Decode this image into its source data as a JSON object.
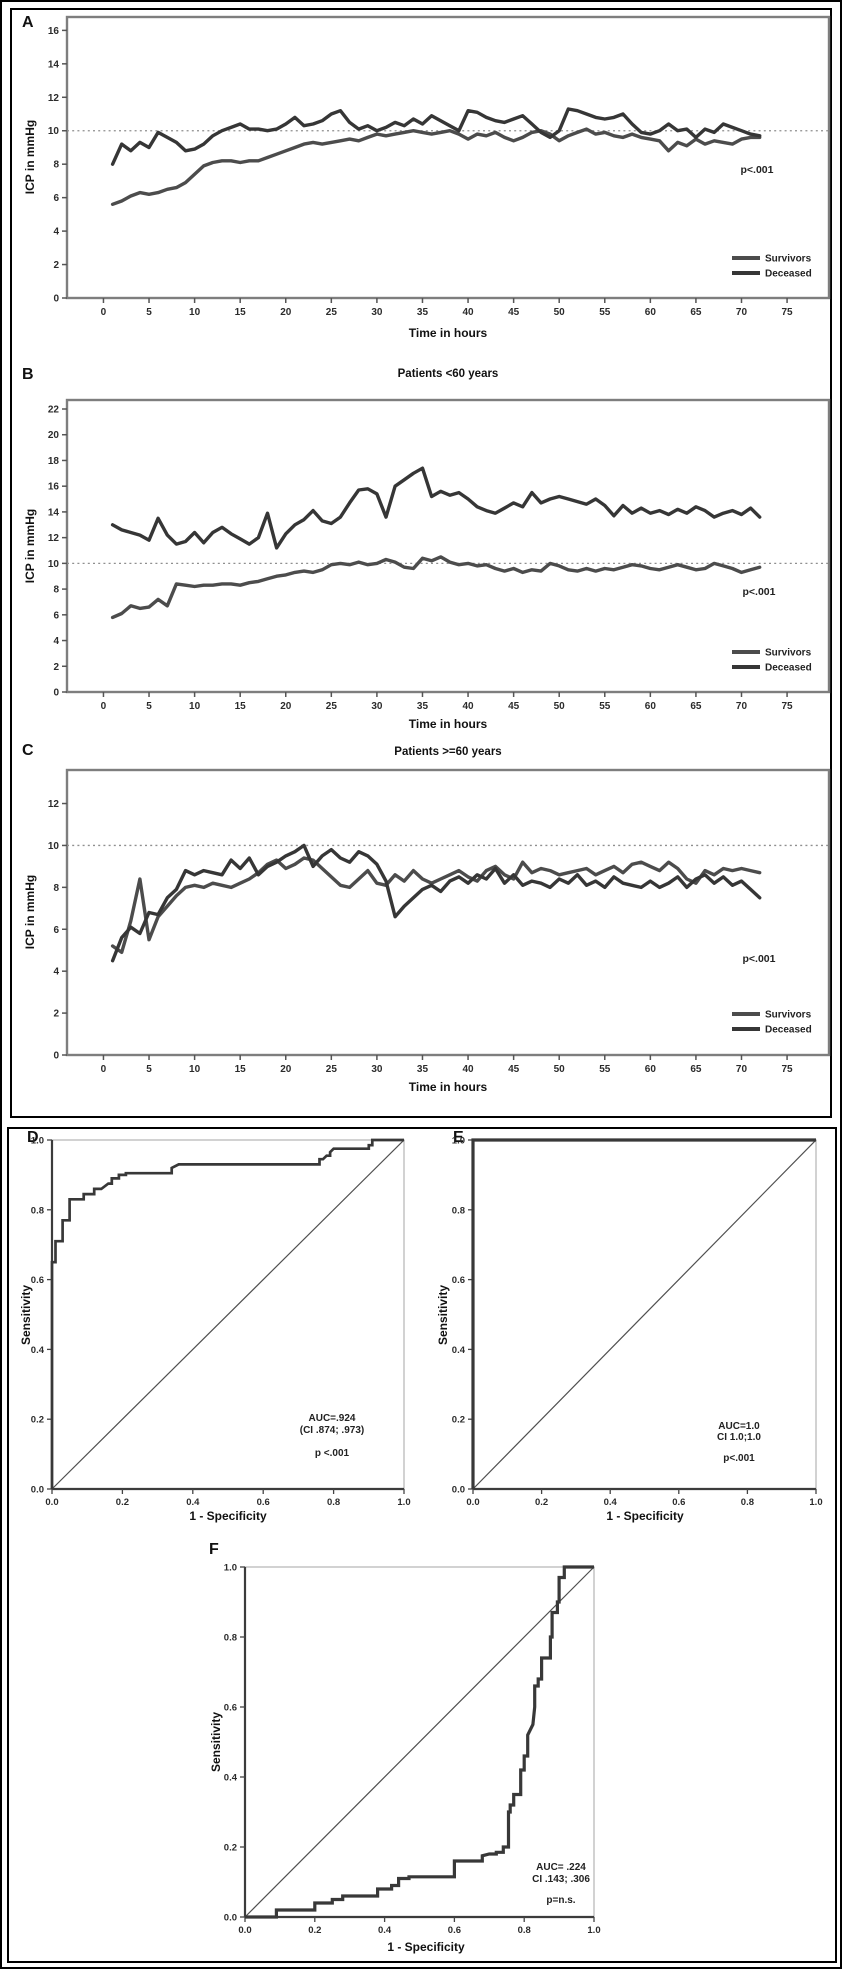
{
  "chart_data": [
    {
      "panel": "A",
      "type": "line",
      "title": "",
      "xlabel": "Time in hours",
      "ylabel": "ICP in mmHg",
      "x_hours": {
        "start": 1,
        "end": 72,
        "step": 1
      },
      "xlim": [
        -4,
        79.6
      ],
      "ylim": [
        0,
        16.8
      ],
      "xticks": [
        "0",
        "5",
        "10",
        "15",
        "20",
        "25",
        "30",
        "35",
        "40",
        "45",
        "50",
        "55",
        "60",
        "65",
        "70",
        "75"
      ],
      "yticks": [
        "0",
        "2",
        "4",
        "6",
        "8",
        "10",
        "12",
        "14",
        "16"
      ],
      "refline_y": 10,
      "p_label": "p<.001",
      "legend": [
        "Survivors",
        "Deceased"
      ],
      "series": [
        {
          "name": "Survivors",
          "values": [
            5.6,
            5.8,
            6.1,
            6.3,
            6.2,
            6.3,
            6.5,
            6.6,
            6.9,
            7.4,
            7.9,
            8.1,
            8.2,
            8.2,
            8.1,
            8.2,
            8.2,
            8.4,
            8.6,
            8.8,
            9.0,
            9.2,
            9.3,
            9.2,
            9.3,
            9.4,
            9.5,
            9.4,
            9.6,
            9.8,
            9.7,
            9.8,
            9.9,
            10.0,
            9.9,
            9.8,
            9.9,
            10.0,
            9.8,
            9.5,
            9.8,
            9.7,
            9.9,
            9.6,
            9.4,
            9.6,
            9.9,
            10.0,
            9.8,
            9.4,
            9.7,
            9.9,
            10.1,
            9.8,
            9.9,
            9.7,
            9.6,
            9.8,
            9.6,
            9.5,
            9.4,
            8.8,
            9.3,
            9.1,
            9.5,
            9.2,
            9.4,
            9.3,
            9.2,
            9.5,
            9.6,
            9.6
          ]
        },
        {
          "name": "Deceased",
          "values": [
            8.0,
            9.2,
            8.8,
            9.3,
            9.0,
            9.9,
            9.6,
            9.3,
            8.8,
            8.9,
            9.2,
            9.7,
            10.0,
            10.2,
            10.4,
            10.1,
            10.1,
            10.0,
            10.1,
            10.4,
            10.8,
            10.3,
            10.4,
            10.6,
            11.0,
            11.2,
            10.5,
            10.1,
            10.3,
            10.0,
            10.2,
            10.5,
            10.3,
            10.7,
            10.4,
            10.9,
            10.6,
            10.3,
            10.0,
            11.2,
            11.1,
            10.8,
            10.6,
            10.5,
            10.7,
            10.9,
            10.4,
            9.9,
            9.6,
            10.0,
            11.3,
            11.2,
            11.0,
            10.8,
            10.7,
            10.8,
            11.0,
            10.4,
            9.9,
            9.8,
            10.0,
            10.4,
            10.0,
            10.1,
            9.6,
            10.1,
            9.9,
            10.4,
            10.2,
            10.0,
            9.8,
            9.7
          ]
        }
      ]
    },
    {
      "panel": "B",
      "type": "line",
      "title": "Patients <60 years",
      "xlabel": "Time in hours",
      "ylabel": "ICP in mmHg",
      "x_hours": {
        "start": 1,
        "end": 72,
        "step": 1
      },
      "xlim": [
        -4,
        79.6
      ],
      "ylim": [
        0,
        22.7
      ],
      "xticks": [
        "0",
        "5",
        "10",
        "15",
        "20",
        "25",
        "30",
        "35",
        "40",
        "45",
        "50",
        "55",
        "60",
        "65",
        "70",
        "75"
      ],
      "yticks": [
        "0",
        "2",
        "4",
        "6",
        "8",
        "10",
        "12",
        "14",
        "16",
        "18",
        "20",
        "22"
      ],
      "refline_y": 10,
      "p_label": "p<.001",
      "legend": [
        "Survivors",
        "Deceased"
      ],
      "series": [
        {
          "name": "Survivors",
          "values": [
            5.8,
            6.1,
            6.7,
            6.5,
            6.6,
            7.2,
            6.7,
            8.4,
            8.3,
            8.2,
            8.3,
            8.3,
            8.4,
            8.4,
            8.3,
            8.5,
            8.6,
            8.8,
            9.0,
            9.1,
            9.3,
            9.4,
            9.3,
            9.5,
            9.9,
            10.0,
            9.9,
            10.1,
            9.9,
            10.0,
            10.3,
            10.1,
            9.7,
            9.6,
            10.4,
            10.2,
            10.5,
            10.1,
            9.9,
            10.0,
            9.8,
            9.9,
            9.6,
            9.4,
            9.6,
            9.3,
            9.5,
            9.4,
            10.0,
            9.8,
            9.5,
            9.4,
            9.6,
            9.4,
            9.6,
            9.5,
            9.7,
            9.9,
            9.8,
            9.6,
            9.5,
            9.7,
            9.9,
            9.7,
            9.5,
            9.6,
            10.0,
            9.8,
            9.6,
            9.3,
            9.5,
            9.7
          ]
        },
        {
          "name": "Deceased",
          "values": [
            13.0,
            12.6,
            12.4,
            12.2,
            11.8,
            13.5,
            12.2,
            11.5,
            11.7,
            12.4,
            11.6,
            12.4,
            12.8,
            12.3,
            11.9,
            11.5,
            12.0,
            13.9,
            11.2,
            12.3,
            13.0,
            13.4,
            14.1,
            13.3,
            13.1,
            13.6,
            14.7,
            15.7,
            15.8,
            15.4,
            13.6,
            16.0,
            16.5,
            17.0,
            17.4,
            15.2,
            15.6,
            15.3,
            15.5,
            15.0,
            14.4,
            14.1,
            13.9,
            14.3,
            14.7,
            14.4,
            15.5,
            14.7,
            15.0,
            15.2,
            15.0,
            14.8,
            14.6,
            15.0,
            14.5,
            13.7,
            14.5,
            13.9,
            14.3,
            13.9,
            14.1,
            13.8,
            14.2,
            13.9,
            14.4,
            14.1,
            13.6,
            13.9,
            14.1,
            13.8,
            14.3,
            13.6
          ]
        }
      ]
    },
    {
      "panel": "C",
      "type": "line",
      "title": "Patients >=60 years",
      "xlabel": "Time in hours",
      "ylabel": "ICP in mmHg",
      "x_hours": {
        "start": 1,
        "end": 72,
        "step": 1
      },
      "xlim": [
        -4,
        79.6
      ],
      "ylim": [
        0,
        13.6
      ],
      "xticks": [
        "0",
        "5",
        "10",
        "15",
        "20",
        "25",
        "30",
        "35",
        "40",
        "45",
        "50",
        "55",
        "60",
        "65",
        "70",
        "75"
      ],
      "yticks": [
        "0",
        "2",
        "4",
        "6",
        "8",
        "10",
        "12"
      ],
      "refline_y": 10,
      "p_label": "p<.001",
      "legend": [
        "Survivors",
        "Deceased"
      ],
      "series": [
        {
          "name": "Survivors",
          "values": [
            5.2,
            4.9,
            6.4,
            8.4,
            5.5,
            6.6,
            7.1,
            7.6,
            8.0,
            8.1,
            8.0,
            8.2,
            8.1,
            8.0,
            8.2,
            8.4,
            8.7,
            9.1,
            9.3,
            8.9,
            9.1,
            9.4,
            9.3,
            8.9,
            8.5,
            8.1,
            8.0,
            8.4,
            8.8,
            8.2,
            8.1,
            8.6,
            8.3,
            8.8,
            8.4,
            8.2,
            8.4,
            8.6,
            8.8,
            8.5,
            8.3,
            8.8,
            9.0,
            8.6,
            8.4,
            9.2,
            8.7,
            8.9,
            8.8,
            8.6,
            8.7,
            8.8,
            8.9,
            8.6,
            8.8,
            9.0,
            8.7,
            9.1,
            9.2,
            9.0,
            8.8,
            9.2,
            8.9,
            8.4,
            8.2,
            8.8,
            8.6,
            8.9,
            8.8,
            8.9,
            8.8,
            8.7
          ]
        },
        {
          "name": "Deceased",
          "values": [
            4.5,
            5.6,
            6.1,
            5.8,
            6.8,
            6.7,
            7.5,
            7.9,
            8.8,
            8.6,
            8.8,
            8.7,
            8.6,
            9.3,
            8.9,
            9.4,
            8.6,
            9.0,
            9.2,
            9.5,
            9.7,
            10.0,
            9.0,
            9.5,
            9.8,
            9.4,
            9.2,
            9.7,
            9.5,
            9.1,
            8.3,
            6.6,
            7.1,
            7.5,
            7.9,
            8.1,
            7.8,
            8.3,
            8.5,
            8.2,
            8.6,
            8.4,
            8.9,
            8.2,
            8.6,
            8.1,
            8.3,
            8.2,
            8.0,
            8.4,
            8.2,
            8.6,
            8.1,
            8.3,
            8.0,
            8.5,
            8.2,
            8.1,
            8.0,
            8.3,
            8.0,
            8.2,
            8.5,
            8.0,
            8.4,
            8.6,
            8.2,
            8.5,
            8.1,
            8.3,
            7.9,
            7.5
          ]
        }
      ]
    },
    {
      "panel": "D",
      "type": "roc",
      "title": "",
      "xlabel": "1 - Specificity",
      "ylabel": "Sensitivity",
      "xlim": [
        0,
        1
      ],
      "ylim": [
        0,
        1
      ],
      "xticks": [
        "0.0",
        "0.2",
        "0.4",
        "0.6",
        "0.8",
        "1.0"
      ],
      "yticks": [
        "0.0",
        "0.2",
        "0.4",
        "0.6",
        "0.8",
        "1.0"
      ],
      "annotation": [
        "AUC=.924",
        "(CI .874; .973)",
        "p <.001"
      ],
      "curve": [
        [
          0,
          0
        ],
        [
          0,
          0.65
        ],
        [
          0.01,
          0.65
        ],
        [
          0.01,
          0.71
        ],
        [
          0.03,
          0.71
        ],
        [
          0.03,
          0.77
        ],
        [
          0.05,
          0.77
        ],
        [
          0.05,
          0.83
        ],
        [
          0.09,
          0.83
        ],
        [
          0.09,
          0.845
        ],
        [
          0.12,
          0.845
        ],
        [
          0.12,
          0.86
        ],
        [
          0.14,
          0.86
        ],
        [
          0.16,
          0.875
        ],
        [
          0.17,
          0.875
        ],
        [
          0.17,
          0.89
        ],
        [
          0.19,
          0.89
        ],
        [
          0.19,
          0.9
        ],
        [
          0.21,
          0.9
        ],
        [
          0.21,
          0.905
        ],
        [
          0.34,
          0.905
        ],
        [
          0.34,
          0.92
        ],
        [
          0.36,
          0.93
        ],
        [
          0.76,
          0.93
        ],
        [
          0.76,
          0.945
        ],
        [
          0.77,
          0.945
        ],
        [
          0.78,
          0.955
        ],
        [
          0.79,
          0.955
        ],
        [
          0.79,
          0.965
        ],
        [
          0.8,
          0.975
        ],
        [
          0.9,
          0.975
        ],
        [
          0.9,
          0.985
        ],
        [
          0.91,
          0.985
        ],
        [
          0.91,
          1
        ],
        [
          1,
          1
        ]
      ]
    },
    {
      "panel": "E",
      "type": "roc",
      "title": "",
      "xlabel": "1 - Specificity",
      "ylabel": "Sensitivity",
      "xlim": [
        0,
        1
      ],
      "ylim": [
        0,
        1
      ],
      "xticks": [
        "0.0",
        "0.2",
        "0.4",
        "0.6",
        "0.8",
        "1.0"
      ],
      "yticks": [
        "0.0",
        "0.2",
        "0.4",
        "0.6",
        "0.8",
        "1.0"
      ],
      "annotation": [
        "AUC=1.0",
        "CI 1.0;1.0",
        "p<.001"
      ],
      "curve": [
        [
          0,
          0
        ],
        [
          0,
          1
        ],
        [
          1,
          1
        ]
      ]
    },
    {
      "panel": "F",
      "type": "roc",
      "title": "",
      "xlabel": "1 - Specificity",
      "ylabel": "Sensitivity",
      "xlim": [
        0,
        1
      ],
      "ylim": [
        0,
        1
      ],
      "xticks": [
        "0.0",
        "0.2",
        "0.4",
        "0.6",
        "0.8",
        "1.0"
      ],
      "yticks": [
        "0.0",
        "0.2",
        "0.4",
        "0.6",
        "0.8",
        "1.0"
      ],
      "annotation": [
        "AUC= .224",
        "CI .143; .306",
        "p=n.s."
      ],
      "curve": [
        [
          0,
          0
        ],
        [
          0.09,
          0
        ],
        [
          0.09,
          0.02
        ],
        [
          0.2,
          0.02
        ],
        [
          0.2,
          0.04
        ],
        [
          0.25,
          0.04
        ],
        [
          0.25,
          0.05
        ],
        [
          0.28,
          0.05
        ],
        [
          0.28,
          0.06
        ],
        [
          0.38,
          0.06
        ],
        [
          0.38,
          0.08
        ],
        [
          0.42,
          0.08
        ],
        [
          0.42,
          0.09
        ],
        [
          0.44,
          0.09
        ],
        [
          0.44,
          0.11
        ],
        [
          0.47,
          0.11
        ],
        [
          0.47,
          0.115
        ],
        [
          0.6,
          0.115
        ],
        [
          0.6,
          0.16
        ],
        [
          0.68,
          0.16
        ],
        [
          0.68,
          0.175
        ],
        [
          0.7,
          0.18
        ],
        [
          0.72,
          0.18
        ],
        [
          0.72,
          0.185
        ],
        [
          0.74,
          0.185
        ],
        [
          0.74,
          0.2
        ],
        [
          0.755,
          0.2
        ],
        [
          0.755,
          0.3
        ],
        [
          0.76,
          0.3
        ],
        [
          0.76,
          0.32
        ],
        [
          0.77,
          0.32
        ],
        [
          0.77,
          0.35
        ],
        [
          0.79,
          0.35
        ],
        [
          0.79,
          0.42
        ],
        [
          0.8,
          0.42
        ],
        [
          0.8,
          0.46
        ],
        [
          0.81,
          0.46
        ],
        [
          0.81,
          0.52
        ],
        [
          0.825,
          0.55
        ],
        [
          0.83,
          0.6
        ],
        [
          0.83,
          0.66
        ],
        [
          0.84,
          0.66
        ],
        [
          0.84,
          0.68
        ],
        [
          0.85,
          0.68
        ],
        [
          0.85,
          0.74
        ],
        [
          0.875,
          0.74
        ],
        [
          0.875,
          0.8
        ],
        [
          0.88,
          0.8
        ],
        [
          0.88,
          0.87
        ],
        [
          0.895,
          0.87
        ],
        [
          0.895,
          0.9
        ],
        [
          0.9,
          0.9
        ],
        [
          0.9,
          0.97
        ],
        [
          0.915,
          0.97
        ],
        [
          0.915,
          1
        ],
        [
          1,
          1
        ]
      ]
    }
  ],
  "colors": {
    "line_survivors": "#4c4c4c",
    "line_deceased": "#363636",
    "frame_gray": "#7e7e7e",
    "refline": "#8f8f8f",
    "roc_frame": "#b3b3b3",
    "roc_axis": "#3c3c3c",
    "roc_curve": "#383838",
    "diagonal": "#4f4f4f"
  }
}
